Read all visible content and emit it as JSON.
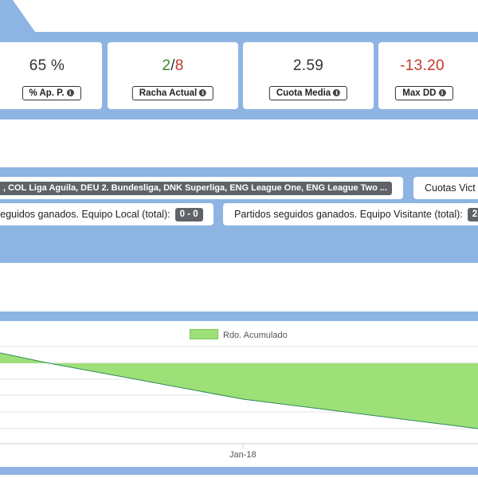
{
  "stats": [
    {
      "value": "65 %",
      "value_color": "#333333",
      "label": "% Ap. P."
    },
    {
      "value_won": "2",
      "value_sep": "/",
      "value_total": "8",
      "won_color": "#3a8a2e",
      "total_color": "#c0392b",
      "label": "Racha Actual"
    },
    {
      "value": "2.59",
      "value_color": "#333333",
      "label": "Cuota Media"
    },
    {
      "value": "-13.20",
      "value_color": "#c0392b",
      "label": "Max DD"
    }
  ],
  "filters": {
    "leagues": ", COL Liga Aguila, DEU 2. Bundesliga, DNK Superliga, ENG League One, ENG League Two ...",
    "odds_label": "Cuotas Vict",
    "home_label": "seguidos ganados. Equipo Local (total):",
    "home_count": "0 - 0",
    "away_label": "Partidos seguidos ganados. Equipo Visitante (total):",
    "away_count": "2"
  },
  "chart_data": {
    "type": "area",
    "series": [
      {
        "name": "Rdo. Acumulado"
      }
    ],
    "x_ticks": [
      "Jan-18"
    ],
    "fill_color": "#9de078",
    "line_color": "#2e8b57"
  },
  "icons": {
    "info": "info-icon"
  },
  "colors": {
    "band": "#8db4e2",
    "badge": "#5f6368"
  }
}
